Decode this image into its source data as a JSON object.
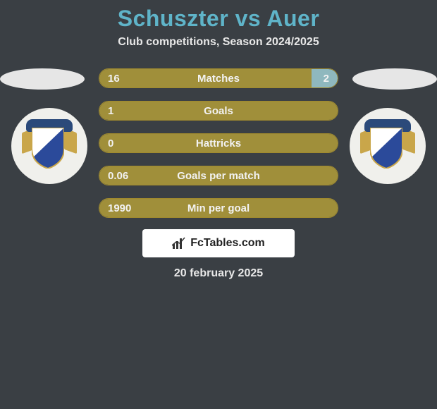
{
  "title": "Schuszter vs Auer",
  "subtitle": "Club competitions, Season 2024/2025",
  "date": "20 february 2025",
  "logo_text": "FcTables.com",
  "colors": {
    "background": "#3a3f44",
    "title": "#5fb4c9",
    "left_fill": "#a08f3a",
    "right_fill": "#8fb8be",
    "bar_border": "#a08a2e",
    "text": "#f2f2f2",
    "badge_bg": "#f0f0ec",
    "oval": "#e6e6e6",
    "logo_bg": "#ffffff"
  },
  "stats": [
    {
      "label": "Matches",
      "left_val": "16",
      "right_val": "2",
      "left_pct": 89,
      "right_pct": 11
    },
    {
      "label": "Goals",
      "left_val": "1",
      "right_val": "",
      "left_pct": 100,
      "right_pct": 0
    },
    {
      "label": "Hattricks",
      "left_val": "0",
      "right_val": "",
      "left_pct": 100,
      "right_pct": 0
    },
    {
      "label": "Goals per match",
      "left_val": "0.06",
      "right_val": "",
      "left_pct": 100,
      "right_pct": 0
    },
    {
      "label": "Min per goal",
      "left_val": "1990",
      "right_val": "",
      "left_pct": 100,
      "right_pct": 0
    }
  ]
}
